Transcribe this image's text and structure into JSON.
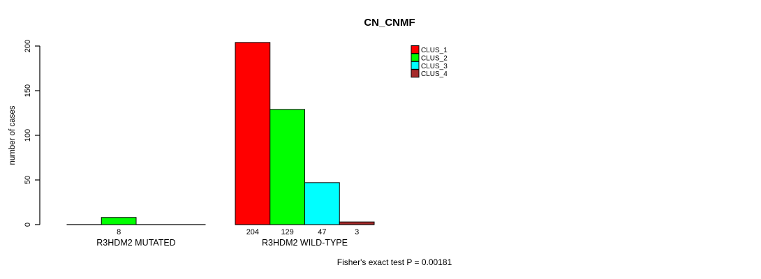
{
  "title": "CN_CNMF",
  "chart_data": {
    "type": "bar",
    "title": "CN_CNMF",
    "xlabel": "",
    "ylabel": "number of cases",
    "ylim": [
      0,
      200
    ],
    "yticks": [
      0,
      50,
      100,
      150,
      200
    ],
    "grid": false,
    "legend_position": "top-right",
    "value_labels": "nonzero-only",
    "categories": [
      "R3HDM2 MUTATED",
      "R3HDM2 WILD-TYPE"
    ],
    "series": [
      {
        "name": "CLUS_1",
        "color": "#ff0000",
        "values": [
          0,
          204
        ]
      },
      {
        "name": "CLUS_2",
        "color": "#00ff00",
        "values": [
          8,
          129
        ]
      },
      {
        "name": "CLUS_3",
        "color": "#00ffff",
        "values": [
          0,
          47
        ]
      },
      {
        "name": "CLUS_4",
        "color": "#a52a2a",
        "values": [
          0,
          3
        ]
      }
    ],
    "annotation": "Fisher's exact test P = 0.00181"
  },
  "colors": {
    "axis": "#000000",
    "background": "#ffffff",
    "text": "#000000"
  }
}
